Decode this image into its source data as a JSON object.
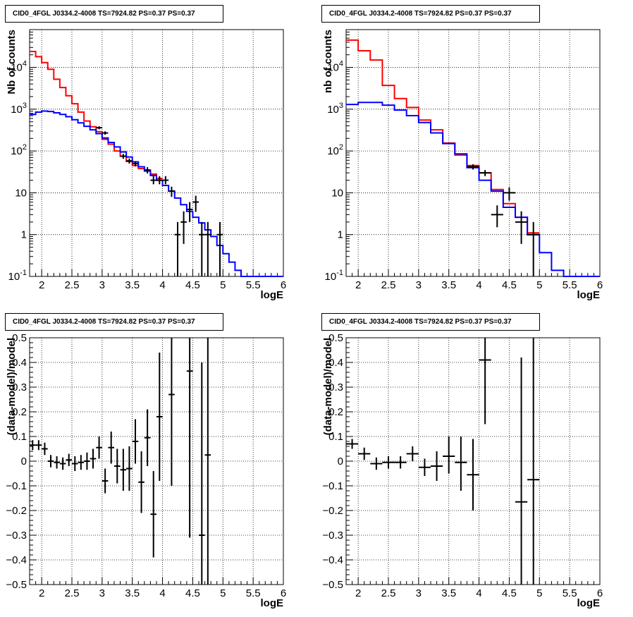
{
  "panel_title": "CID0_4FGL J0334.2-4008 TS=7924.82 PS=0.37 PS=0.37",
  "chart_data": [
    {
      "type": "line",
      "title": "CID0_4FGL J0334.2-4008 TS=7924.82 PS=0.37 PS=0.37",
      "xlabel": "logE",
      "ylabel": "Nb of counts",
      "xlim": [
        1.8,
        6
      ],
      "ylim": [
        0.1,
        80000
      ],
      "yscale": "log",
      "grid": true,
      "xticks": [
        "2",
        "2.5",
        "3",
        "3.5",
        "4",
        "4.5",
        "5",
        "5.5",
        "6"
      ],
      "yticks": [
        "10^-1",
        "1",
        "10",
        "10^2",
        "10^3",
        "10^4"
      ],
      "series": [
        {
          "color": "#ff0000",
          "style": "step",
          "x": [
            1.8,
            1.9,
            2.0,
            2.1,
            2.2,
            2.3,
            2.4,
            2.5,
            2.6,
            2.7,
            2.8,
            2.9,
            3.0,
            3.1,
            3.2,
            3.3,
            3.4,
            3.5,
            3.6,
            3.7,
            3.8,
            3.9
          ],
          "values": [
            24000,
            18000,
            13000,
            9000,
            5200,
            3300,
            2100,
            1350,
            850,
            520,
            380,
            290,
            190,
            145,
            100,
            75,
            56,
            45,
            38,
            35,
            28,
            22
          ]
        },
        {
          "color": "#0000ff",
          "style": "step",
          "x": [
            1.8,
            1.9,
            2.0,
            2.1,
            2.2,
            2.3,
            2.4,
            2.5,
            2.6,
            2.7,
            2.8,
            2.9,
            3.0,
            3.1,
            3.2,
            3.3,
            3.4,
            3.5,
            3.6,
            3.7,
            3.8,
            3.9,
            4.0,
            4.1,
            4.2,
            4.3,
            4.4,
            4.5,
            4.6,
            4.7,
            4.8,
            4.9,
            5.0,
            5.1,
            5.2,
            5.3,
            5.4,
            5.5,
            5.6,
            5.7,
            5.8,
            5.9
          ],
          "values": [
            750,
            850,
            900,
            880,
            820,
            750,
            660,
            560,
            470,
            390,
            320,
            260,
            205,
            160,
            125,
            95,
            72,
            55,
            42,
            33,
            26,
            20,
            15,
            11,
            7.5,
            5.2,
            3.6,
            2.6,
            1.9,
            1.3,
            0.9,
            0.55,
            0.35,
            0.22,
            0.14,
            0.1,
            0.1,
            0.1,
            0.1,
            0.1,
            0.1,
            0.1
          ]
        }
      ],
      "points": [
        {
          "x": 2.95,
          "y": 360,
          "lo": 330,
          "hi": 390
        },
        {
          "x": 3.05,
          "y": 270,
          "lo": 245,
          "hi": 295
        },
        {
          "x": 3.35,
          "y": 75,
          "lo": 65,
          "hi": 85
        },
        {
          "x": 3.45,
          "y": 58,
          "lo": 50,
          "hi": 66
        },
        {
          "x": 3.55,
          "y": 50,
          "lo": 43,
          "hi": 57
        },
        {
          "x": 3.75,
          "y": 35,
          "lo": 29,
          "hi": 41
        },
        {
          "x": 3.85,
          "y": 20,
          "lo": 16,
          "hi": 25
        },
        {
          "x": 3.95,
          "y": 20,
          "lo": 16,
          "hi": 25
        },
        {
          "x": 4.05,
          "y": 20,
          "lo": 16,
          "hi": 25
        },
        {
          "x": 4.15,
          "y": 11,
          "lo": 8,
          "hi": 14
        },
        {
          "x": 4.25,
          "y": 1,
          "lo": 0.1,
          "hi": 2
        },
        {
          "x": 4.35,
          "y": 2,
          "lo": 0.6,
          "hi": 3.6
        },
        {
          "x": 4.45,
          "y": 4,
          "lo": 2,
          "hi": 6
        },
        {
          "x": 4.55,
          "y": 6,
          "lo": 3.5,
          "hi": 8.5
        },
        {
          "x": 4.65,
          "y": 1,
          "lo": 0.1,
          "hi": 2
        },
        {
          "x": 4.75,
          "y": 1,
          "lo": 0.1,
          "hi": 2
        },
        {
          "x": 4.95,
          "y": 1,
          "lo": 0.1,
          "hi": 2
        }
      ]
    },
    {
      "type": "line",
      "title": "CID0_4FGL J0334.2-4008 TS=7924.82 PS=0.37 PS=0.37",
      "xlabel": "logE",
      "ylabel": "nb of counts",
      "xlim": [
        1.8,
        6
      ],
      "ylim": [
        0.1,
        80000
      ],
      "yscale": "log",
      "grid": true,
      "xticks": [
        "2",
        "2.5",
        "3",
        "3.5",
        "4",
        "4.5",
        "5",
        "5.5",
        "6"
      ],
      "yticks": [
        "10^-1",
        "1",
        "10",
        "10^2",
        "10^3",
        "10^4"
      ],
      "series": [
        {
          "color": "#ff0000",
          "style": "step",
          "x": [
            1.8,
            2.0,
            2.2,
            2.4,
            2.6,
            2.8,
            3.0,
            3.2,
            3.4,
            3.6,
            3.8,
            4.0,
            4.2,
            4.4,
            4.6,
            4.8
          ],
          "values": [
            45000,
            25000,
            15000,
            3700,
            1800,
            1100,
            550,
            320,
            155,
            80,
            45,
            30,
            12,
            5.5,
            2.6,
            1.1
          ]
        },
        {
          "color": "#0000ff",
          "style": "step",
          "x": [
            1.8,
            2.0,
            2.2,
            2.4,
            2.6,
            2.8,
            3.0,
            3.2,
            3.4,
            3.6,
            3.8,
            4.0,
            4.2,
            4.4,
            4.6,
            4.8,
            5.0,
            5.2,
            5.4,
            5.6,
            5.8
          ],
          "values": [
            1300,
            1450,
            1450,
            1250,
            950,
            700,
            480,
            270,
            150,
            85,
            40,
            20,
            11,
            4.5,
            2.6,
            1.0,
            0.37,
            0.14,
            0.1,
            0.1,
            0.1
          ]
        }
      ],
      "points": [
        {
          "x": 3.9,
          "y": 42,
          "lo": 36,
          "hi": 48
        },
        {
          "x": 4.1,
          "y": 30,
          "lo": 25,
          "hi": 35
        },
        {
          "x": 4.3,
          "y": 3,
          "lo": 1.5,
          "hi": 5
        },
        {
          "x": 4.5,
          "y": 10,
          "lo": 6.5,
          "hi": 13.5
        },
        {
          "x": 4.7,
          "y": 2,
          "lo": 0.6,
          "hi": 3.6
        },
        {
          "x": 4.9,
          "y": 1,
          "lo": 0.1,
          "hi": 2
        }
      ]
    },
    {
      "type": "scatter",
      "title": "CID0_4FGL J0334.2-4008 TS=7924.82 PS=0.37 PS=0.37",
      "xlabel": "logE",
      "ylabel": "(data-model)/model",
      "xlim": [
        1.8,
        6
      ],
      "ylim": [
        -0.5,
        0.5
      ],
      "grid": true,
      "xticks": [
        "2",
        "2.5",
        "3",
        "3.5",
        "4",
        "4.5",
        "5",
        "5.5",
        "6"
      ],
      "yticks": [
        "−0.5",
        "−0.4",
        "−0.3",
        "−0.2",
        "−0.1",
        "0",
        "0.1",
        "0.2",
        "0.3",
        "0.4",
        "0.5"
      ],
      "points": [
        {
          "x": 1.85,
          "y": 0.065,
          "lo": 0.045,
          "hi": 0.085
        },
        {
          "x": 1.95,
          "y": 0.065,
          "lo": 0.045,
          "hi": 0.085
        },
        {
          "x": 2.05,
          "y": 0.05,
          "lo": 0.025,
          "hi": 0.075
        },
        {
          "x": 2.15,
          "y": 0.0,
          "lo": -0.025,
          "hi": 0.025
        },
        {
          "x": 2.25,
          "y": -0.005,
          "lo": -0.03,
          "hi": 0.02
        },
        {
          "x": 2.35,
          "y": -0.01,
          "lo": -0.035,
          "hi": 0.015
        },
        {
          "x": 2.45,
          "y": 0.005,
          "lo": -0.02,
          "hi": 0.03
        },
        {
          "x": 2.55,
          "y": -0.01,
          "lo": -0.04,
          "hi": 0.02
        },
        {
          "x": 2.65,
          "y": -0.005,
          "lo": -0.035,
          "hi": 0.025
        },
        {
          "x": 2.75,
          "y": 0.0,
          "lo": -0.035,
          "hi": 0.035
        },
        {
          "x": 2.85,
          "y": 0.01,
          "lo": -0.03,
          "hi": 0.05
        },
        {
          "x": 2.95,
          "y": 0.055,
          "lo": 0.01,
          "hi": 0.1
        },
        {
          "x": 3.05,
          "y": -0.08,
          "lo": -0.13,
          "hi": -0.03
        },
        {
          "x": 3.15,
          "y": 0.055,
          "lo": -0.01,
          "hi": 0.12
        },
        {
          "x": 3.25,
          "y": -0.02,
          "lo": -0.09,
          "hi": 0.05
        },
        {
          "x": 3.35,
          "y": -0.035,
          "lo": -0.12,
          "hi": 0.05
        },
        {
          "x": 3.45,
          "y": -0.03,
          "lo": -0.12,
          "hi": 0.06
        },
        {
          "x": 3.55,
          "y": 0.08,
          "lo": -0.01,
          "hi": 0.17
        },
        {
          "x": 3.65,
          "y": -0.085,
          "lo": -0.21,
          "hi": 0.04
        },
        {
          "x": 3.75,
          "y": 0.095,
          "lo": -0.02,
          "hi": 0.21
        },
        {
          "x": 3.85,
          "y": -0.215,
          "lo": -0.39,
          "hi": -0.04
        },
        {
          "x": 3.95,
          "y": 0.18,
          "lo": -0.08,
          "hi": 0.44
        },
        {
          "x": 4.15,
          "y": 0.27,
          "lo": -0.1,
          "hi": 0.5
        },
        {
          "x": 4.45,
          "y": 0.365,
          "lo": -0.31,
          "hi": 0.5
        },
        {
          "x": 4.65,
          "y": -0.3,
          "lo": -0.5,
          "hi": 0.4
        },
        {
          "x": 4.75,
          "y": 0.025,
          "lo": -0.5,
          "hi": 0.5
        }
      ]
    },
    {
      "type": "scatter",
      "title": "CID0_4FGL J0334.2-4008 TS=7924.82 PS=0.37 PS=0.37",
      "xlabel": "logE",
      "ylabel": "(data-model)/model",
      "xlim": [
        1.8,
        6
      ],
      "ylim": [
        -0.5,
        0.5
      ],
      "grid": true,
      "xticks": [
        "2",
        "2.5",
        "3",
        "3.5",
        "4",
        "4.5",
        "5",
        "5.5",
        "6"
      ],
      "yticks": [
        "−0.5",
        "−0.4",
        "−0.3",
        "−0.2",
        "−0.1",
        "0",
        "0.1",
        "0.2",
        "0.3",
        "0.4",
        "0.5"
      ],
      "points": [
        {
          "x": 1.9,
          "y": 0.07,
          "lo": 0.05,
          "hi": 0.09
        },
        {
          "x": 2.1,
          "y": 0.03,
          "lo": 0.005,
          "hi": 0.055
        },
        {
          "x": 2.3,
          "y": -0.01,
          "lo": -0.035,
          "hi": 0.015
        },
        {
          "x": 2.5,
          "y": -0.005,
          "lo": -0.03,
          "hi": 0.02
        },
        {
          "x": 2.7,
          "y": -0.005,
          "lo": -0.03,
          "hi": 0.02
        },
        {
          "x": 2.9,
          "y": 0.03,
          "lo": 0.0,
          "hi": 0.06
        },
        {
          "x": 3.1,
          "y": -0.025,
          "lo": -0.06,
          "hi": 0.01
        },
        {
          "x": 3.3,
          "y": -0.02,
          "lo": -0.08,
          "hi": 0.04
        },
        {
          "x": 3.5,
          "y": 0.02,
          "lo": -0.05,
          "hi": 0.1
        },
        {
          "x": 3.7,
          "y": -0.005,
          "lo": -0.12,
          "hi": 0.1
        },
        {
          "x": 3.9,
          "y": -0.055,
          "lo": -0.2,
          "hi": 0.09
        },
        {
          "x": 4.1,
          "y": 0.41,
          "lo": 0.15,
          "hi": 0.5
        },
        {
          "x": 4.7,
          "y": -0.165,
          "lo": -0.5,
          "hi": 0.42
        },
        {
          "x": 4.9,
          "y": -0.075,
          "lo": -0.5,
          "hi": 0.5
        }
      ]
    }
  ]
}
